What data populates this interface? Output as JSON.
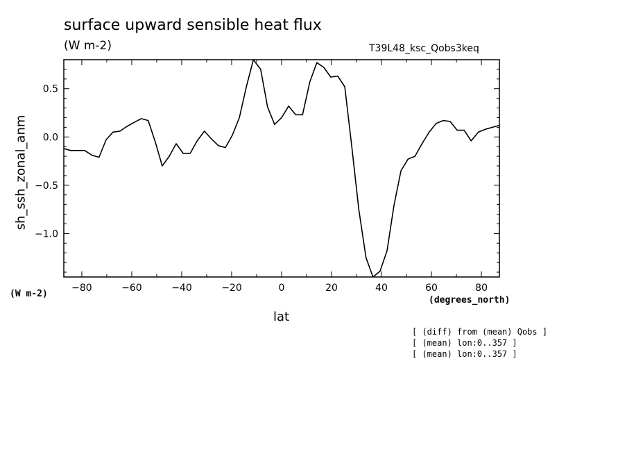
{
  "chart_data": {
    "type": "line",
    "title": "surface upward sensible heat flux",
    "subtitle": "(W m-2)",
    "run_id": "T39L48_ksc_Qobs3keq",
    "xlabel": "lat",
    "ylabel": "sh_ssh_zonal_anm",
    "y_units": "(W m-2)",
    "x_units": "(degrees_north)",
    "xlim": [
      -87.2,
      87.2
    ],
    "ylim": [
      -1.45,
      0.8
    ],
    "x_ticks": [
      -80,
      -60,
      -40,
      -20,
      0,
      20,
      40,
      60,
      80
    ],
    "x_tick_labels": [
      "−80",
      "−60",
      "−40",
      "−20",
      "0",
      "20",
      "40",
      "60",
      "80"
    ],
    "y_ticks": [
      0.5,
      0.0,
      -0.5,
      -1.0
    ],
    "y_tick_labels": [
      "0.5",
      "0.0",
      "−0.5",
      "−1.0"
    ],
    "notes": [
      "[ (diff) from (mean) Qobs ]",
      "[ (mean) lon:0..357 ]",
      "[ (mean) lon:0..357 ]"
    ],
    "series": [
      {
        "x": [
          -87.2,
          -84.4,
          -81.6,
          -78.8,
          -75.9,
          -73.1,
          -70.3,
          -67.5,
          -64.7,
          -61.9,
          -59.1,
          -56.2,
          -53.4,
          -50.6,
          -47.8,
          -45.0,
          -42.2,
          -39.4,
          -36.6,
          -33.8,
          -30.9,
          -28.1,
          -25.3,
          -22.5,
          -19.7,
          -16.9,
          -14.1,
          -11.3,
          -8.4,
          -5.6,
          -2.8,
          0.0,
          2.8,
          5.6,
          8.4,
          11.3,
          14.1,
          16.9,
          19.7,
          22.5,
          25.3,
          28.1,
          30.9,
          33.8,
          36.6,
          39.4,
          42.2,
          45.0,
          47.8,
          50.6,
          53.4,
          56.2,
          59.1,
          61.9,
          64.7,
          67.5,
          70.3,
          73.1,
          75.9,
          78.8,
          81.6,
          84.4,
          87.2
        ],
        "values": [
          -0.12,
          -0.14,
          -0.14,
          -0.14,
          -0.19,
          -0.21,
          -0.03,
          0.05,
          0.06,
          0.11,
          0.15,
          0.19,
          0.17,
          -0.05,
          -0.3,
          -0.2,
          -0.07,
          -0.17,
          -0.17,
          -0.04,
          0.06,
          -0.02,
          -0.09,
          -0.11,
          0.02,
          0.2,
          0.52,
          0.8,
          0.7,
          0.31,
          0.13,
          0.2,
          0.32,
          0.23,
          0.23,
          0.57,
          0.77,
          0.72,
          0.62,
          0.63,
          0.52,
          -0.1,
          -0.75,
          -1.25,
          -1.45,
          -1.39,
          -1.18,
          -0.71,
          -0.35,
          -0.23,
          -0.2,
          -0.07,
          0.05,
          0.14,
          0.17,
          0.16,
          0.07,
          0.07,
          -0.04,
          0.05,
          0.08,
          0.1,
          0.12
        ]
      }
    ]
  }
}
